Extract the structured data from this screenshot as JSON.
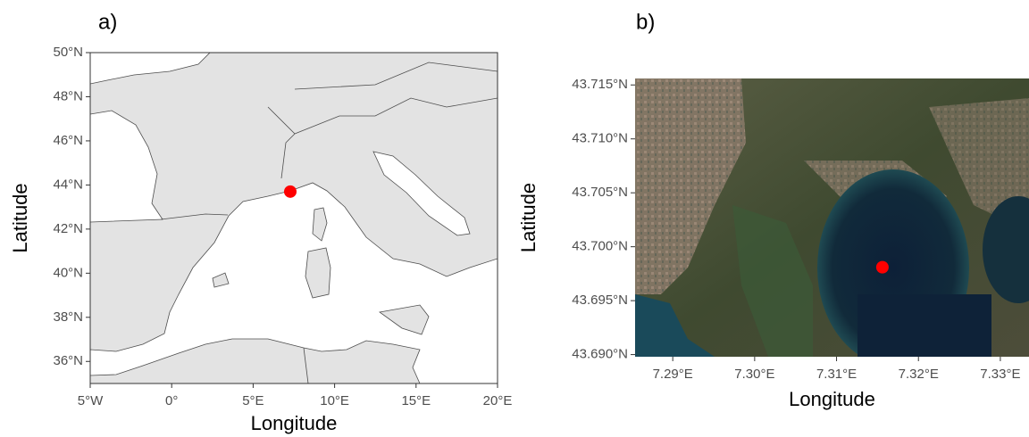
{
  "chart_data": [
    {
      "type": "map",
      "title": "a)",
      "xlabel": "Longitude",
      "ylabel": "Latitude",
      "xlim": [
        -5,
        20
      ],
      "ylim": [
        35,
        50
      ],
      "xticks": [
        {
          "value": -5,
          "label": "5°W"
        },
        {
          "value": 0,
          "label": "0°"
        },
        {
          "value": 5,
          "label": "5°E"
        },
        {
          "value": 10,
          "label": "10°E"
        },
        {
          "value": 15,
          "label": "15°E"
        },
        {
          "value": 20,
          "label": "20°E"
        }
      ],
      "yticks": [
        {
          "value": 36,
          "label": "36°N"
        },
        {
          "value": 38,
          "label": "38°N"
        },
        {
          "value": 40,
          "label": "40°N"
        },
        {
          "value": 42,
          "label": "42°N"
        },
        {
          "value": 44,
          "label": "44°N"
        },
        {
          "value": 46,
          "label": "46°N"
        },
        {
          "value": 48,
          "label": "48°N"
        },
        {
          "value": 50,
          "label": "50°N"
        }
      ],
      "x": [
        7.28
      ],
      "values": [
        43.7
      ],
      "color": "#ff0000",
      "frame": true
    },
    {
      "type": "map",
      "title": "b)",
      "xlabel": "Longitude",
      "ylabel": "Latitude",
      "xlim": [
        7.2854,
        7.3335
      ],
      "ylim": [
        43.6898,
        43.7156
      ],
      "xticks": [
        {
          "value": 7.29,
          "label": "7.29°E"
        },
        {
          "value": 7.3,
          "label": "7.30°E"
        },
        {
          "value": 7.31,
          "label": "7.31°E"
        },
        {
          "value": 7.32,
          "label": "7.32°E"
        },
        {
          "value": 7.33,
          "label": "7.33°E"
        }
      ],
      "yticks": [
        {
          "value": 43.69,
          "label": "43.690°N"
        },
        {
          "value": 43.695,
          "label": "43.695°N"
        },
        {
          "value": 43.7,
          "label": "43.700°N"
        },
        {
          "value": 43.705,
          "label": "43.705°N"
        },
        {
          "value": 43.71,
          "label": "43.710°N"
        },
        {
          "value": 43.715,
          "label": "43.715°N"
        }
      ],
      "x": [
        7.3156
      ],
      "values": [
        43.6981
      ],
      "color": "#ff0000",
      "frame": false
    }
  ]
}
